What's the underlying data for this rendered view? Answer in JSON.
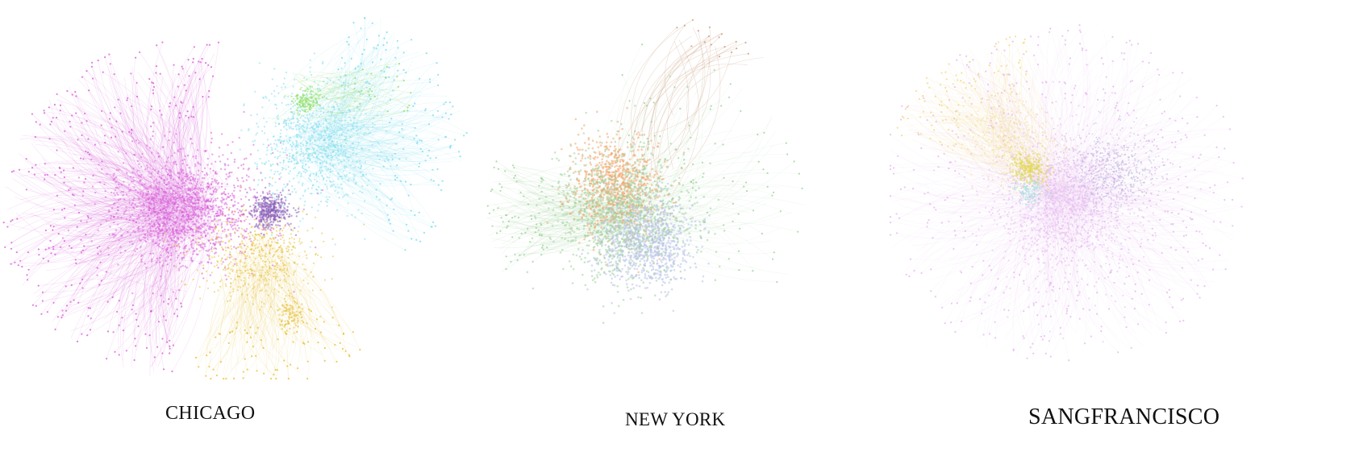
{
  "panels": [
    {
      "label": "CHICAGO",
      "communities": [
        "#d85fd8",
        "#7fdcee",
        "#e8c13a",
        "#8ee06a",
        "#8b5fb8",
        "#e07a5f"
      ]
    },
    {
      "label": "NEW YORK",
      "communities": [
        "#9ed29a",
        "#f3a46b",
        "#b7c1e6",
        "#c99a7c"
      ]
    },
    {
      "label": "SANGFRANCISCO",
      "communities": [
        "#e6b8f0",
        "#e0d84a",
        "#b9b4da",
        "#9fe0d6",
        "#f2d88a"
      ]
    }
  ]
}
